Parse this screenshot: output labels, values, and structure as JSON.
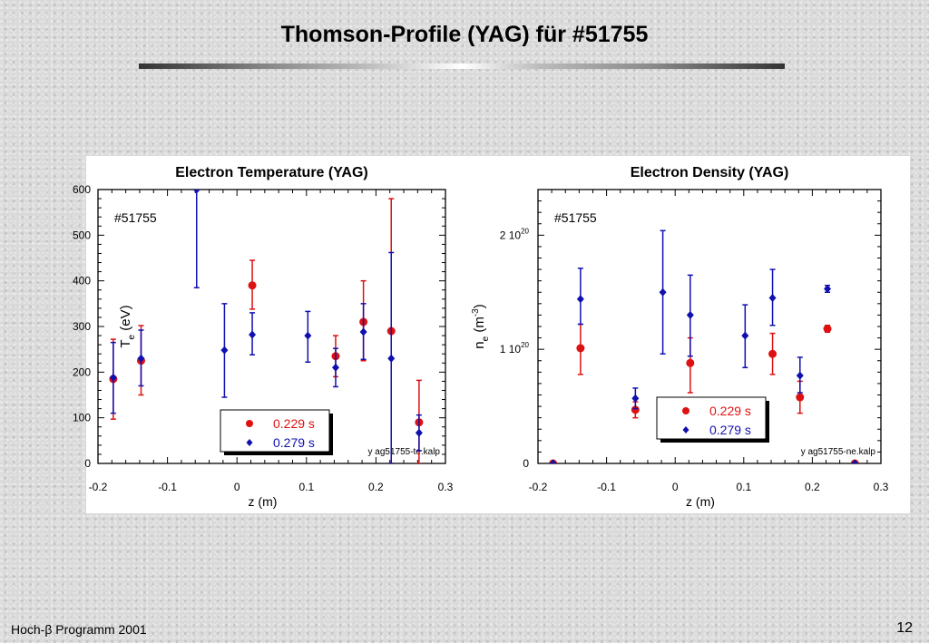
{
  "slide": {
    "title": "Thomson-Profile (YAG) für #51755",
    "footer_left": "Hoch-β Programm 2001",
    "page_number": "12"
  },
  "colors": {
    "series_1": "#dd1111",
    "series_2": "#1010b0"
  },
  "chart_data": [
    {
      "type": "scatter",
      "title": "Electron Temperature (YAG)",
      "xlabel": "z (m)",
      "ylabel": "T",
      "ylabel_sub": "e",
      "ylabel_unit": " (eV)",
      "annotation": "#51755",
      "source_label": "y ag51755-te.kalp",
      "xlim": [
        -0.2,
        0.3
      ],
      "ylim": [
        0,
        600
      ],
      "xticks": [
        -0.2,
        -0.1,
        0,
        0.1,
        0.2,
        0.3
      ],
      "xtick_labels": [
        "-0.2",
        "-0.1",
        "0",
        "0.1",
        "0.2",
        "0.3"
      ],
      "yticks": [
        0,
        100,
        200,
        300,
        400,
        500,
        600
      ],
      "ytick_labels": [
        "0",
        "100",
        "200",
        "300",
        "400",
        "500",
        "600"
      ],
      "legend_position": "bottom-center",
      "series": [
        {
          "name": "0.229 s",
          "marker": "circle",
          "points": [
            {
              "x": -0.178,
              "y": 185,
              "lo": 97,
              "hi": 272
            },
            {
              "x": -0.138,
              "y": 225,
              "lo": 150,
              "hi": 302
            },
            {
              "x": 0.022,
              "y": 390,
              "lo": 338,
              "hi": 445
            },
            {
              "x": 0.142,
              "y": 235,
              "lo": 190,
              "hi": 280
            },
            {
              "x": 0.182,
              "y": 310,
              "lo": 225,
              "hi": 400
            },
            {
              "x": 0.222,
              "y": 290,
              "lo": 0,
              "hi": 580
            },
            {
              "x": 0.262,
              "y": 90,
              "lo": 0,
              "hi": 182
            }
          ]
        },
        {
          "name": "0.279 s",
          "marker": "diamond",
          "points": [
            {
              "x": -0.178,
              "y": 188,
              "lo": 110,
              "hi": 265
            },
            {
              "x": -0.138,
              "y": 230,
              "lo": 170,
              "hi": 292
            },
            {
              "x": -0.058,
              "y": 600,
              "lo": 385,
              "hi": 600
            },
            {
              "x": -0.018,
              "y": 248,
              "lo": 145,
              "hi": 350
            },
            {
              "x": 0.022,
              "y": 282,
              "lo": 238,
              "hi": 330
            },
            {
              "x": 0.102,
              "y": 280,
              "lo": 222,
              "hi": 333
            },
            {
              "x": 0.142,
              "y": 210,
              "lo": 168,
              "hi": 252
            },
            {
              "x": 0.182,
              "y": 288,
              "lo": 228,
              "hi": 350
            },
            {
              "x": 0.222,
              "y": 230,
              "lo": 0,
              "hi": 462
            },
            {
              "x": 0.262,
              "y": 67,
              "lo": 28,
              "hi": 106
            }
          ]
        }
      ]
    },
    {
      "type": "scatter",
      "title": "Electron Density (YAG)",
      "xlabel": "z (m)",
      "ylabel": "n",
      "ylabel_sub": "e",
      "ylabel_unit": " (m",
      "ylabel_sup": "-3",
      "ylabel_end": ")",
      "annotation": "#51755",
      "source_label": "y ag51755-ne.kalp",
      "xlim": [
        -0.2,
        0.3
      ],
      "ylim": [
        0,
        2.4e+20
      ],
      "xticks": [
        -0.2,
        -0.1,
        0,
        0.1,
        0.2,
        0.3
      ],
      "xtick_labels": [
        "-0.2",
        "-0.1",
        "0",
        "0.1",
        "0.2",
        "0.3"
      ],
      "yticks": [
        0,
        1e+20,
        2e+20
      ],
      "ytick_labels": [
        {
          "base": "0",
          "exp": ""
        },
        {
          "base": "1 10",
          "exp": "20"
        },
        {
          "base": "2 10",
          "exp": "20"
        }
      ],
      "legend_position": "bottom-center",
      "series": [
        {
          "name": "0.229 s",
          "marker": "circle",
          "points": [
            {
              "x": -0.178,
              "y": 0,
              "lo": 0,
              "hi": 0
            },
            {
              "x": -0.138,
              "y": 1.01e+20,
              "lo": 7.8e+19,
              "hi": 1.22e+20
            },
            {
              "x": -0.058,
              "y": 4.7e+19,
              "lo": 4e+19,
              "hi": 5.4e+19
            },
            {
              "x": 0.022,
              "y": 8.8e+19,
              "lo": 6.2e+19,
              "hi": 1.1e+20
            },
            {
              "x": 0.142,
              "y": 9.6e+19,
              "lo": 7.8e+19,
              "hi": 1.14e+20
            },
            {
              "x": 0.182,
              "y": 5.8e+19,
              "lo": 4.4e+19,
              "hi": 7.2e+19
            },
            {
              "x": 0.222,
              "y": 1.18e+20,
              "lo": 1.15e+20,
              "hi": 1.21e+20
            },
            {
              "x": 0.262,
              "y": 0,
              "lo": 0,
              "hi": 0
            }
          ]
        },
        {
          "name": "0.279 s",
          "marker": "diamond",
          "points": [
            {
              "x": -0.178,
              "y": 0,
              "lo": 0,
              "hi": 0
            },
            {
              "x": -0.138,
              "y": 1.44e+20,
              "lo": 1.22e+20,
              "hi": 1.71e+20
            },
            {
              "x": -0.058,
              "y": 5.7e+19,
              "lo": 4.8e+19,
              "hi": 6.6e+19
            },
            {
              "x": -0.018,
              "y": 1.5e+20,
              "lo": 9.6e+19,
              "hi": 2.04e+20
            },
            {
              "x": 0.022,
              "y": 1.3e+20,
              "lo": 9.4e+19,
              "hi": 1.65e+20
            },
            {
              "x": 0.102,
              "y": 1.12e+20,
              "lo": 8.4e+19,
              "hi": 1.39e+20
            },
            {
              "x": 0.142,
              "y": 1.45e+20,
              "lo": 1.21e+20,
              "hi": 1.7e+20
            },
            {
              "x": 0.182,
              "y": 7.7e+19,
              "lo": 6.2e+19,
              "hi": 9.3e+19
            },
            {
              "x": 0.222,
              "y": 1.53e+20,
              "lo": 1.5e+20,
              "hi": 1.56e+20
            },
            {
              "x": 0.262,
              "y": 0,
              "lo": 0,
              "hi": 0
            }
          ]
        }
      ]
    }
  ]
}
